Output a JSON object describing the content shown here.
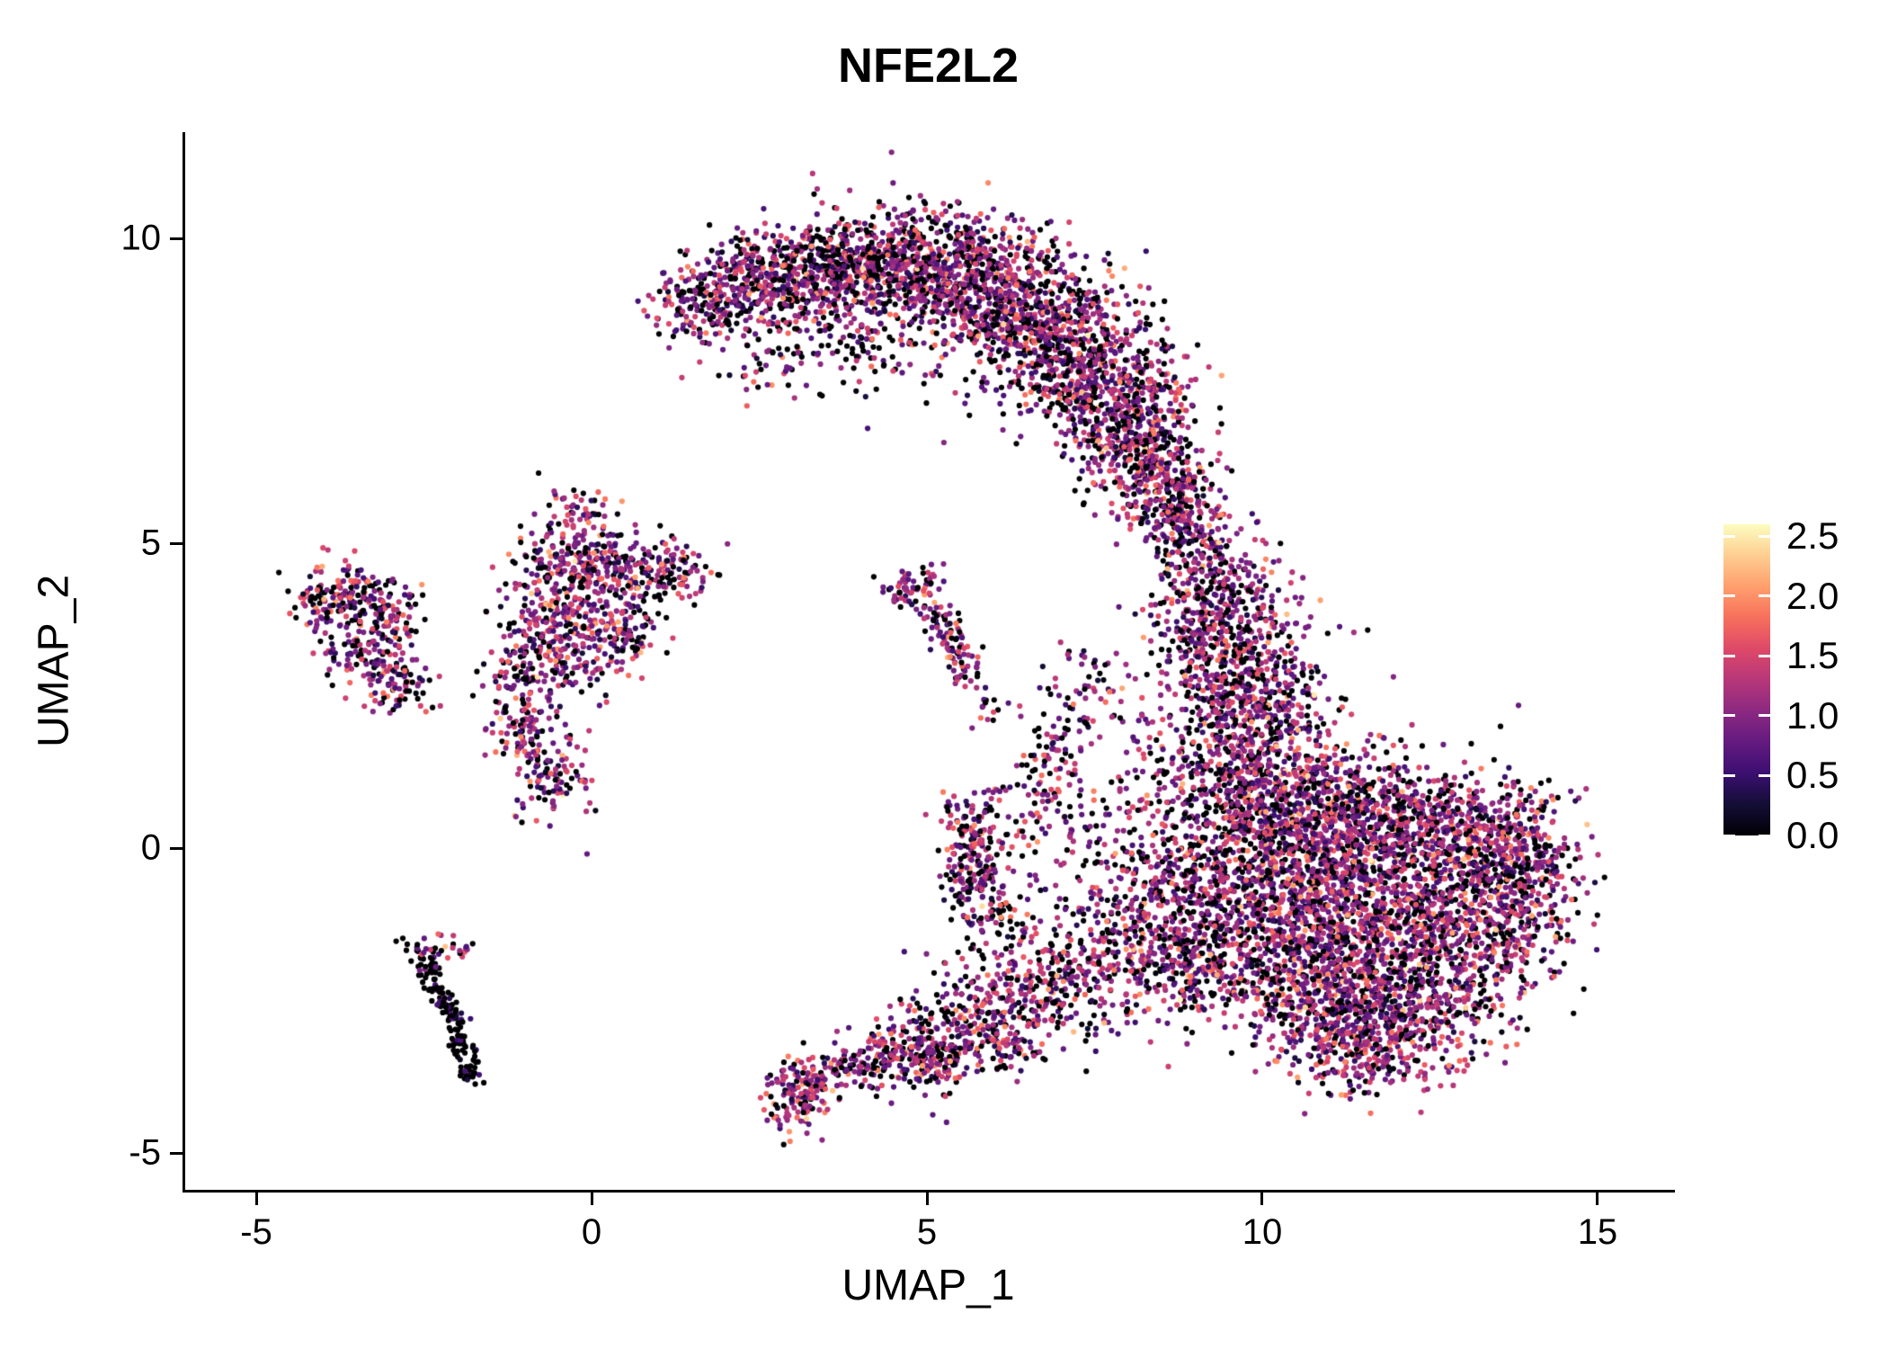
{
  "chart_data": {
    "type": "scatter",
    "title": "NFE2L2",
    "xlabel": "UMAP_1",
    "ylabel": "UMAP_2",
    "xlim": [
      -6.06,
      16.1
    ],
    "ylim": [
      -5.6,
      11.74
    ],
    "xticks": [
      -5,
      0,
      5,
      10,
      15
    ],
    "yticks": [
      -5,
      0,
      5,
      10
    ],
    "grid": false,
    "legend": {
      "position": "right",
      "vmin": 0.0,
      "vmax": 2.6,
      "ticks": [
        {
          "label": "2.5",
          "v": 2.5
        },
        {
          "label": "2.0",
          "v": 2.0
        },
        {
          "label": "1.5",
          "v": 1.5
        },
        {
          "label": "1.0",
          "v": 1.0
        },
        {
          "label": "0.5",
          "v": 0.5
        },
        {
          "label": "0.0",
          "v": 0.0
        }
      ]
    },
    "colormap": {
      "name": "magma",
      "stops": [
        {
          "t": 0.0,
          "c": "#000004"
        },
        {
          "t": 0.1,
          "c": "#140e36"
        },
        {
          "t": 0.2,
          "c": "#3b0f70"
        },
        {
          "t": 0.3,
          "c": "#641a80"
        },
        {
          "t": 0.4,
          "c": "#8c2981"
        },
        {
          "t": 0.5,
          "c": "#b73779"
        },
        {
          "t": 0.6,
          "c": "#de4968"
        },
        {
          "t": 0.7,
          "c": "#f7705c"
        },
        {
          "t": 0.8,
          "c": "#fe9f6d"
        },
        {
          "t": 0.9,
          "c": "#fece91"
        },
        {
          "t": 1.0,
          "c": "#fcfdbf"
        }
      ]
    },
    "seed": 11,
    "point_radius": 3.1,
    "defaults": {
      "zero_frac": 0.24,
      "v_mean": 1.05,
      "v_sd": 0.5
    },
    "clusters": [
      {
        "x": 1.55,
        "y": 8.85,
        "sx": 0.35,
        "sy": 0.3,
        "n": 130
      },
      {
        "x": 2.4,
        "y": 9.2,
        "sx": 0.5,
        "sy": 0.4,
        "n": 260
      },
      {
        "x": 3.3,
        "y": 9.45,
        "sx": 0.55,
        "sy": 0.45,
        "n": 340
      },
      {
        "x": 4.3,
        "y": 9.6,
        "sx": 0.6,
        "sy": 0.45,
        "n": 380
      },
      {
        "x": 5.3,
        "y": 9.5,
        "sx": 0.6,
        "sy": 0.5,
        "n": 420
      },
      {
        "x": 6.2,
        "y": 9.0,
        "sx": 0.6,
        "sy": 0.55,
        "n": 460
      },
      {
        "x": 7.0,
        "y": 8.3,
        "sx": 0.6,
        "sy": 0.6,
        "n": 480
      },
      {
        "x": 7.8,
        "y": 7.4,
        "sx": 0.55,
        "sy": 0.6,
        "n": 430
      },
      {
        "x": 8.3,
        "y": 6.4,
        "sx": 0.45,
        "sy": 0.55,
        "n": 300
      },
      {
        "x": 8.7,
        "y": 5.6,
        "sx": 0.35,
        "sy": 0.4,
        "n": 160
      },
      {
        "x": 4.9,
        "y": 8.3,
        "sx": 0.9,
        "sy": 0.5,
        "n": 80,
        "zf": 0.35
      },
      {
        "x": 3.6,
        "y": 8.35,
        "sx": 0.6,
        "sy": 0.45,
        "n": 80,
        "zf": 0.35
      },
      {
        "x": 2.6,
        "y": 7.95,
        "sx": 0.35,
        "sy": 0.35,
        "n": 35,
        "zf": 0.35
      },
      {
        "x": 9.1,
        "y": 5.0,
        "sx": 0.35,
        "sy": 0.45,
        "n": 130
      },
      {
        "x": 9.4,
        "y": 4.1,
        "sx": 0.45,
        "sy": 0.5,
        "n": 220
      },
      {
        "x": 9.7,
        "y": 3.1,
        "sx": 0.55,
        "sy": 0.55,
        "n": 300
      },
      {
        "x": 9.9,
        "y": 2.1,
        "sx": 0.65,
        "sy": 0.5,
        "n": 340
      },
      {
        "x": 8.9,
        "y": 3.4,
        "sx": 0.35,
        "sy": 0.6,
        "n": 110
      },
      {
        "x": 8.5,
        "y": 1.5,
        "sx": 0.4,
        "sy": 0.4,
        "n": 55
      },
      {
        "x": 9.6,
        "y": 0.9,
        "sx": 0.5,
        "sy": 0.5,
        "n": 260
      },
      {
        "x": 10.4,
        "y": 0.6,
        "sx": 0.7,
        "sy": 0.6,
        "n": 420
      },
      {
        "x": 11.4,
        "y": 0.4,
        "sx": 0.8,
        "sy": 0.6,
        "n": 480
      },
      {
        "x": 12.6,
        "y": 0.3,
        "sx": 0.8,
        "sy": 0.55,
        "n": 440
      },
      {
        "x": 13.7,
        "y": 0.1,
        "sx": 0.5,
        "sy": 0.45,
        "n": 240
      },
      {
        "x": 9.6,
        "y": -0.7,
        "sx": 0.5,
        "sy": 0.55,
        "n": 280
      },
      {
        "x": 10.6,
        "y": -1.1,
        "sx": 0.8,
        "sy": 0.7,
        "n": 520
      },
      {
        "x": 11.8,
        "y": -1.3,
        "sx": 0.9,
        "sy": 0.7,
        "n": 560
      },
      {
        "x": 13.1,
        "y": -1.4,
        "sx": 0.7,
        "sy": 0.6,
        "n": 400
      },
      {
        "x": 10.9,
        "y": -2.4,
        "sx": 0.7,
        "sy": 0.6,
        "n": 420
      },
      {
        "x": 12.1,
        "y": -2.7,
        "sx": 0.7,
        "sy": 0.55,
        "n": 360
      },
      {
        "x": 11.3,
        "y": -3.4,
        "sx": 0.5,
        "sy": 0.4,
        "n": 170
      },
      {
        "x": 13.9,
        "y": -0.9,
        "sx": 0.4,
        "sy": 0.5,
        "n": 150
      },
      {
        "x": 9.1,
        "y": -1.9,
        "sx": 0.4,
        "sy": 0.5,
        "n": 160
      },
      {
        "x": 8.3,
        "y": -1.6,
        "sx": 0.5,
        "sy": 0.6,
        "n": 200,
        "zf": 0.3
      },
      {
        "x": 7.4,
        "y": -2.0,
        "sx": 0.5,
        "sy": 0.5,
        "n": 160,
        "zf": 0.3
      },
      {
        "x": 6.5,
        "y": -2.4,
        "sx": 0.5,
        "sy": 0.45,
        "n": 140,
        "zf": 0.3
      },
      {
        "x": 5.6,
        "y": -2.8,
        "sx": 0.45,
        "sy": 0.4,
        "n": 120,
        "zf": 0.3
      },
      {
        "x": 4.9,
        "y": -3.2,
        "sx": 0.4,
        "sy": 0.35,
        "n": 110,
        "zf": 0.3
      },
      {
        "x": 8.6,
        "y": -0.5,
        "sx": 0.45,
        "sy": 0.5,
        "n": 150,
        "zf": 0.3
      },
      {
        "x": 7.9,
        "y": 0.6,
        "sx": 0.5,
        "sy": 0.5,
        "n": 70,
        "zf": 0.3
      },
      {
        "x": 7.2,
        "y": -0.6,
        "sx": 0.55,
        "sy": 0.6,
        "n": 60,
        "zf": 0.3
      },
      {
        "x": 6.3,
        "y": -1.4,
        "sx": 0.5,
        "sy": 0.5,
        "n": 70,
        "zf": 0.3
      },
      {
        "x": 5.65,
        "y": 0.0,
        "sx": 0.22,
        "sy": 0.5,
        "n": 160
      },
      {
        "x": 5.9,
        "y": -0.9,
        "sx": 0.3,
        "sy": 0.3,
        "n": 55
      },
      {
        "x": 6.9,
        "y": 1.6,
        "sx": 0.25,
        "sy": 0.55,
        "n": 85
      },
      {
        "x": 7.5,
        "y": 2.6,
        "sx": 0.3,
        "sy": 0.4,
        "n": 50
      },
      {
        "x": 6.3,
        "y": 0.6,
        "sx": 0.35,
        "sy": 0.45,
        "n": 50
      },
      {
        "x": 3.05,
        "y": -4.0,
        "sx": 0.22,
        "sy": 0.3,
        "n": 130,
        "vm": 1.2
      },
      {
        "seg": [
          3.3,
          -3.8,
          4.6,
          -3.3
        ],
        "j": 0.22,
        "n": 150
      },
      {
        "x": 5.1,
        "y": -3.55,
        "sx": 0.3,
        "sy": 0.25,
        "n": 80
      },
      {
        "x": 6.2,
        "y": -3.15,
        "sx": 0.3,
        "sy": 0.25,
        "n": 85
      },
      {
        "x": -0.35,
        "y": 4.7,
        "sx": 0.45,
        "sy": 0.35,
        "n": 160
      },
      {
        "x": 0.5,
        "y": 4.5,
        "sx": 0.45,
        "sy": 0.3,
        "n": 140
      },
      {
        "x": 1.3,
        "y": 4.5,
        "sx": 0.3,
        "sy": 0.25,
        "n": 70
      },
      {
        "x": -0.6,
        "y": 3.9,
        "sx": 0.4,
        "sy": 0.35,
        "n": 120
      },
      {
        "x": -0.1,
        "y": 3.3,
        "sx": 0.45,
        "sy": 0.4,
        "n": 150
      },
      {
        "x": -0.9,
        "y": 2.9,
        "sx": 0.35,
        "sy": 0.4,
        "n": 110
      },
      {
        "x": -1.0,
        "y": 2.0,
        "sx": 0.3,
        "sy": 0.35,
        "n": 90
      },
      {
        "x": -0.55,
        "y": 1.1,
        "sx": 0.3,
        "sy": 0.35,
        "n": 100
      },
      {
        "x": -0.2,
        "y": 5.5,
        "sx": 0.25,
        "sy": 0.25,
        "n": 45
      },
      {
        "x": 0.6,
        "y": 3.6,
        "sx": 0.3,
        "sy": 0.3,
        "n": 60
      },
      {
        "x": -3.7,
        "y": 4.25,
        "sx": 0.3,
        "sy": 0.25,
        "n": 80
      },
      {
        "x": -3.15,
        "y": 3.95,
        "sx": 0.35,
        "sy": 0.3,
        "n": 100
      },
      {
        "x": -3.35,
        "y": 3.2,
        "sx": 0.35,
        "sy": 0.35,
        "n": 120
      },
      {
        "x": -2.85,
        "y": 2.65,
        "sx": 0.3,
        "sy": 0.25,
        "n": 70
      },
      {
        "x": -4.05,
        "y": 3.95,
        "sx": 0.18,
        "sy": 0.25,
        "n": 40
      },
      {
        "seg": [
          -2.75,
          -1.55,
          -2.05,
          -2.8
        ],
        "j": 0.1,
        "n": 90,
        "zf": 0.78,
        "vm": 0.6,
        "vs": 0.3
      },
      {
        "seg": [
          -2.05,
          -2.8,
          -1.75,
          -3.85
        ],
        "j": 0.09,
        "n": 70,
        "zf": 0.85,
        "vm": 0.5,
        "vs": 0.3
      },
      {
        "x": -2.2,
        "y": -1.65,
        "sx": 0.25,
        "sy": 0.15,
        "n": 25,
        "zf": 0.3
      },
      {
        "x": 4.75,
        "y": 4.2,
        "sx": 0.22,
        "sy": 0.22,
        "n": 55
      },
      {
        "seg": [
          5.15,
          3.85,
          5.65,
          2.75
        ],
        "j": 0.13,
        "n": 95
      },
      {
        "x": 5.05,
        "y": 4.5,
        "sx": 0.12,
        "sy": 0.12,
        "n": 12
      },
      {
        "x": 5.95,
        "y": 2.3,
        "sx": 0.15,
        "sy": 0.15,
        "n": 15
      }
    ]
  }
}
